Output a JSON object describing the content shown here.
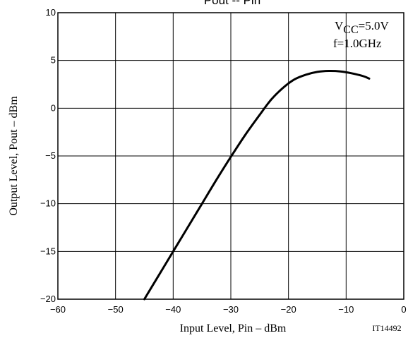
{
  "chart_data": {
    "type": "line",
    "title": "Pout -- Pin",
    "xlabel": "Input Level, Pin  –  dBm",
    "ylabel": "Output Level, Pout  –  dBm",
    "xlim": [
      -60,
      0
    ],
    "ylim": [
      -20,
      10
    ],
    "x_ticks": [
      "−60",
      "−50",
      "−40",
      "−30",
      "−20",
      "−10",
      "0"
    ],
    "y_ticks": [
      "10",
      "5",
      "0",
      "−5",
      "−10",
      "−15",
      "−20"
    ],
    "grid": true,
    "annotation": {
      "vcc_prefix": "V",
      "vcc_sub": "CC",
      "vcc_value": "=5.0V",
      "freq": "f=1.0GHz"
    },
    "figure_code": "IT14492",
    "series": [
      {
        "x": [
          -45,
          -42.5,
          -40,
          -37.5,
          -35,
          -32.5,
          -30,
          -27.5,
          -25,
          -23,
          -21,
          -19,
          -17,
          -15,
          -13,
          -11,
          -9,
          -7,
          -6
        ],
        "y": [
          -20,
          -17.5,
          -15,
          -12.5,
          -10,
          -7.5,
          -5.1,
          -2.8,
          -0.7,
          0.9,
          2.1,
          3.0,
          3.5,
          3.8,
          3.9,
          3.85,
          3.65,
          3.35,
          3.1
        ],
        "color": "#000000"
      }
    ]
  }
}
